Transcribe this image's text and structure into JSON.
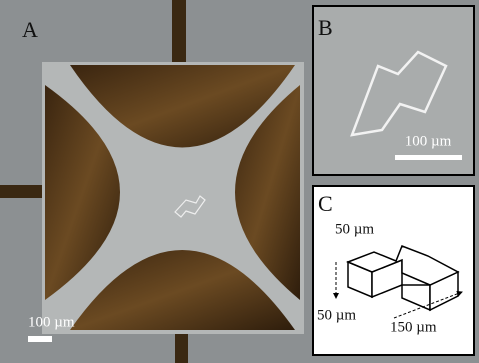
{
  "panels": [
    {
      "label": "A",
      "scale_bar": "100 µm"
    },
    {
      "label": "B",
      "scale_bar": "100 µm"
    },
    {
      "label": "C",
      "dimensions": [
        "50 µm",
        "50 µm",
        "150 µm"
      ]
    }
  ]
}
